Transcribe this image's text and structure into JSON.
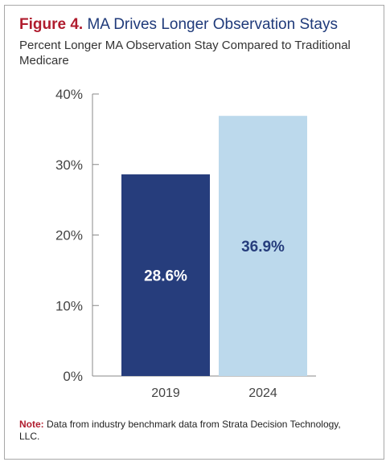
{
  "figure_label": "Figure 4.",
  "title": "MA Drives Longer Observation Stays",
  "subtitle": "Percent Longer MA Observation Stay Compared to Traditional Medicare",
  "note_label": "Note:",
  "note_text": "Data from industry benchmark data from Strata Decision Technology, LLC.",
  "colors": {
    "accent_red": "#b01c2e",
    "bar_2019": "#263d7c",
    "bar_2024": "#bcd9ec",
    "label_on_dark": "#ffffff",
    "label_on_light": "#263d7c"
  },
  "chart_data": {
    "type": "bar",
    "categories": [
      "2019",
      "2024"
    ],
    "values": [
      28.6,
      36.9
    ],
    "data_labels": [
      "28.6%",
      "36.9%"
    ],
    "yticks": [
      0,
      10,
      20,
      30,
      40
    ],
    "ytick_labels": [
      "0%",
      "10%",
      "20%",
      "30%",
      "40%"
    ],
    "ylim": [
      0,
      40
    ],
    "grid": false,
    "legend": "none"
  }
}
